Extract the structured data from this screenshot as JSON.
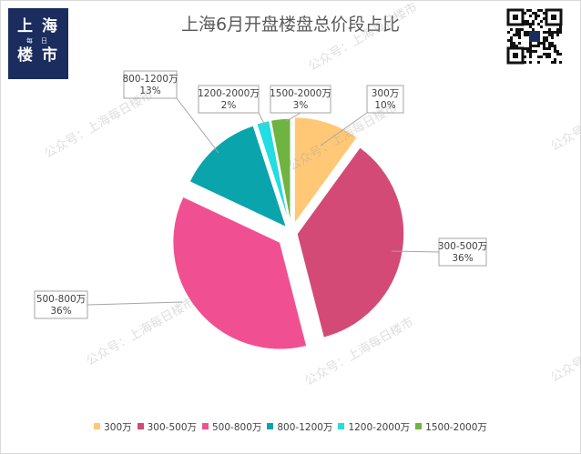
{
  "logo": {
    "line1": "上海",
    "line2": "每日",
    "line3": "楼市"
  },
  "watermark_text": "公众号：上海每日楼市",
  "chart_data": {
    "type": "pie",
    "title": "上海6月开盘楼盘总价段占比",
    "legend_position": "bottom",
    "slices": [
      {
        "name": "300万",
        "percent_label": "10%",
        "value": 10,
        "color": "#ffc877"
      },
      {
        "name": "300-500万",
        "percent_label": "36%",
        "value": 36,
        "color": "#d44a77"
      },
      {
        "name": "500-800万",
        "percent_label": "36%",
        "value": 36,
        "color": "#f05091"
      },
      {
        "name": "800-1200万",
        "percent_label": "13%",
        "value": 13,
        "color": "#0aa4ac"
      },
      {
        "name": "1200-2000万",
        "percent_label": "2%",
        "value": 2,
        "color": "#22dde2"
      },
      {
        "name": "1500-2000万",
        "percent_label": "3%",
        "value": 3,
        "color": "#6fb340"
      }
    ]
  }
}
